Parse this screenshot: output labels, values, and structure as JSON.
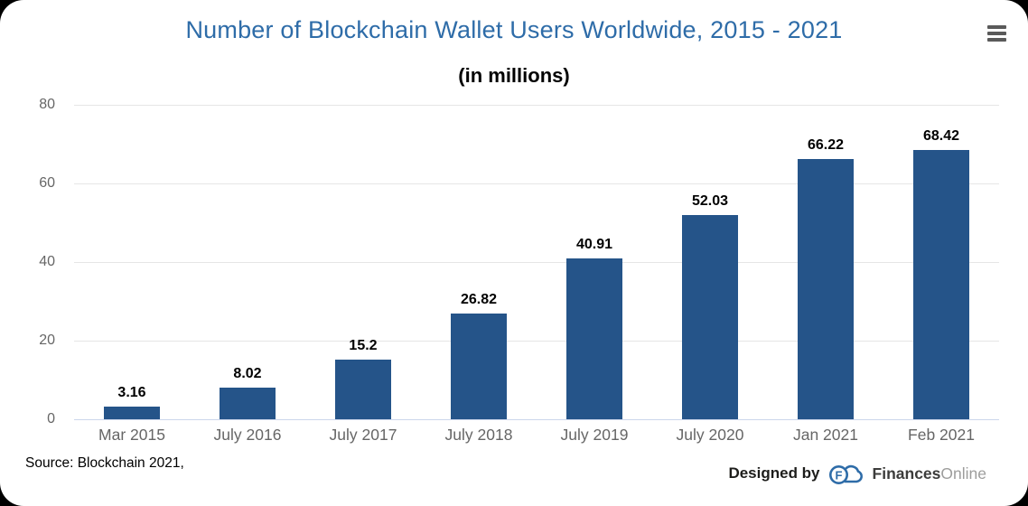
{
  "header": {
    "title": "Number of Blockchain Wallet Users Worldwide, 2015 - 2021",
    "subtitle": "(in millions)"
  },
  "chart_data": {
    "type": "bar",
    "title": "Number of Blockchain Wallet Users Worldwide, 2015 - 2021",
    "subtitle": "(in millions)",
    "categories": [
      "Mar 2015",
      "July 2016",
      "July 2017",
      "July 2018",
      "July 2019",
      "July 2020",
      "Jan 2021",
      "Feb 2021"
    ],
    "values": [
      3.16,
      8.02,
      15.2,
      26.82,
      40.91,
      52.03,
      66.22,
      68.42
    ],
    "value_labels": [
      "3.16",
      "8.02",
      "15.2",
      "26.82",
      "40.91",
      "52.03",
      "66.22",
      "68.42"
    ],
    "xlabel": "",
    "ylabel": "",
    "ylim": [
      0,
      80
    ],
    "yticks": [
      0,
      20,
      40,
      60,
      80
    ],
    "grid": true,
    "legend": "none",
    "data_labels_position": "above-bars"
  },
  "colors": {
    "title": "#2e6ca8",
    "bar": "#255489",
    "grid": "#e6e6e6",
    "axis_line": "#ccd6eb",
    "tick_label": "#666666",
    "value_label": "#000000"
  },
  "footer": {
    "source": "Source: Blockchain 2021,",
    "designed_by": "Designed by",
    "brand_bold": "Finances",
    "brand_light": "Online"
  }
}
